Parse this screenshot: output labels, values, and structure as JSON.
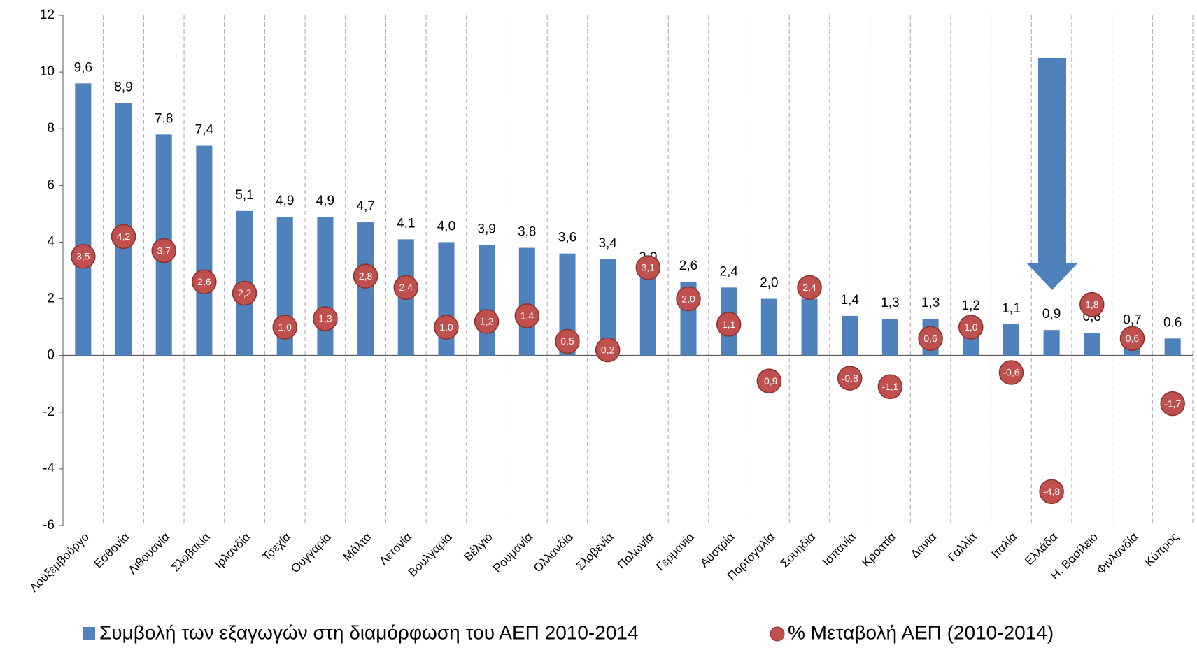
{
  "chart_data": {
    "type": "bar",
    "categories": [
      "Λουξεμβούργο",
      "Εσθονία",
      "Λιθουανία",
      "Σλοβακία",
      "Ιρλανδία",
      "Τσεχία",
      "Ουγγαρία",
      "Μάλτα",
      "Λετονία",
      "Βουλγαρία",
      "Βέλγιο",
      "Ρουμανία",
      "Ολλανδία",
      "Σλοβενία",
      "Πολωνία",
      "Γερμανία",
      "Αυστρία",
      "Πορτογαλία",
      "Σουηδία",
      "Ισπανία",
      "Κροατία",
      "Δανία",
      "Γαλλία",
      "Ιταλία",
      "Ελλάδα",
      "Η. Βασίλειο",
      "Φινλανδία",
      "Κύπρος"
    ],
    "series": [
      {
        "name": "Συμβολή των εξαγωγών στη διαμόρφωση του ΑΕΠ 2010-2014",
        "type": "bar",
        "color": "#4f81bd",
        "values": [
          9.6,
          8.9,
          7.8,
          7.4,
          5.1,
          4.9,
          4.9,
          4.7,
          4.1,
          4.0,
          3.9,
          3.8,
          3.6,
          3.4,
          2.9,
          2.6,
          2.4,
          2.0,
          2.0,
          1.4,
          1.3,
          1.3,
          1.2,
          1.1,
          0.9,
          0.8,
          0.7,
          0.6
        ],
        "value_labels": [
          "9,6",
          "8,9",
          "7,8",
          "7,4",
          "5,1",
          "4,9",
          "4,9",
          "4,7",
          "4,1",
          "4,0",
          "3,9",
          "3,8",
          "3,6",
          "3,4",
          "2,9",
          "2,6",
          "2,4",
          "2,0",
          "2,0",
          "1,4",
          "1,3",
          "1,3",
          "1,2",
          "1,1",
          "0,9",
          "0,8",
          "0,7",
          "0,6"
        ]
      },
      {
        "name": "% Μεταβολή ΑΕΠ (2010-2014)",
        "type": "scatter",
        "color": "#c0504d",
        "values": [
          3.5,
          4.2,
          3.7,
          2.6,
          2.2,
          1.0,
          1.3,
          2.8,
          2.4,
          1.0,
          1.2,
          1.4,
          0.5,
          0.2,
          3.1,
          2.0,
          1.1,
          -0.9,
          2.4,
          -0.8,
          -1.1,
          0.6,
          1.0,
          -0.6,
          -4.8,
          1.8,
          0.6,
          -1.7
        ],
        "value_labels": [
          "3,5",
          "4,2",
          "3,7",
          "2,6",
          "2,2",
          "1,0",
          "1,3",
          "2,8",
          "2,4",
          "1,0",
          "1,2",
          "1,4",
          "0,5",
          "0,2",
          "3,1",
          "2,0",
          "1,1",
          "-0,9",
          "2,4",
          "-0,8",
          "-1,1",
          "0,6",
          "1,0",
          "-0,6",
          "-4,8",
          "1,8",
          "0,6",
          "-1,7"
        ]
      }
    ],
    "ylim": [
      -6,
      12
    ],
    "yticks": [
      -6,
      -4,
      -2,
      0,
      2,
      4,
      6,
      8,
      10,
      12
    ]
  }
}
